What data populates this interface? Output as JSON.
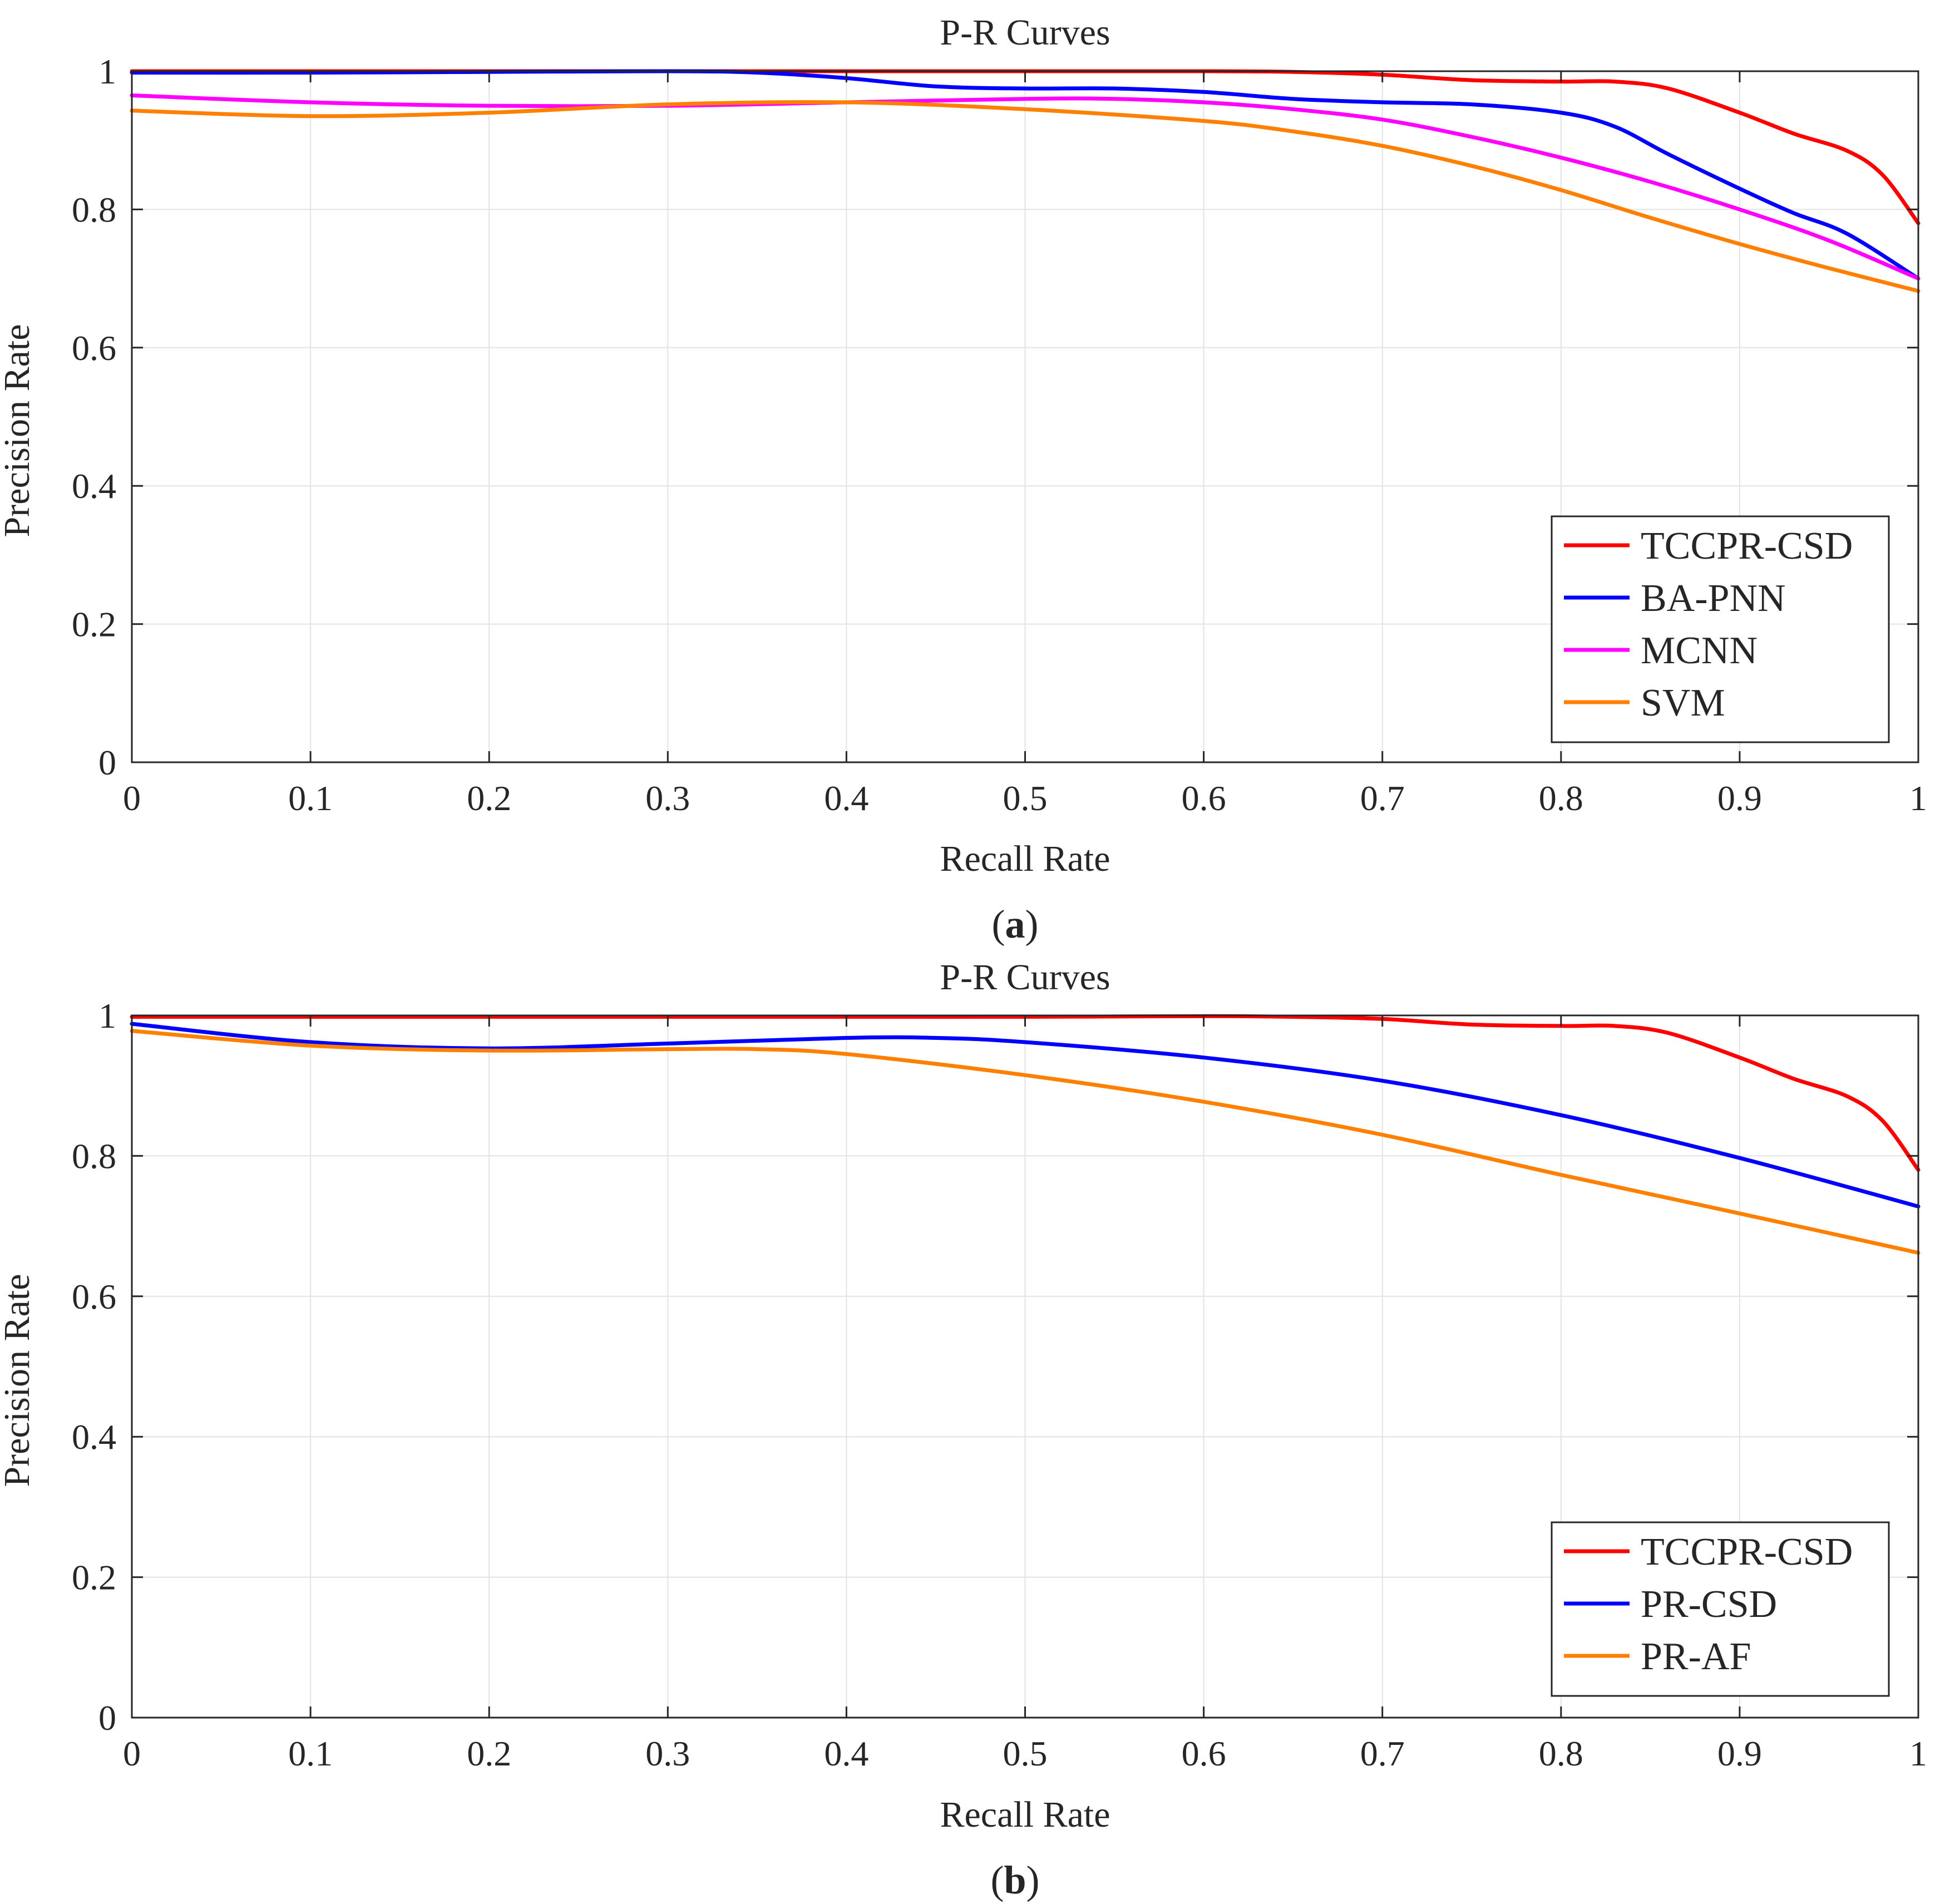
{
  "chart_data": [
    {
      "id": "a",
      "type": "line",
      "title": "P-R Curves",
      "xlabel": "Recall Rate",
      "ylabel": "Precision Rate",
      "caption": "a",
      "xlim": [
        0,
        1
      ],
      "ylim": [
        0,
        1
      ],
      "xticks": [
        "0",
        "0.1",
        "0.2",
        "0.3",
        "0.4",
        "0.5",
        "0.6",
        "0.7",
        "0.8",
        "0.9",
        "1"
      ],
      "yticks": [
        "0",
        "0.2",
        "0.4",
        "0.6",
        "0.8",
        "1"
      ],
      "grid": true,
      "legend_position": "bottom-right",
      "series": [
        {
          "name": "TCCPR-CSD",
          "color": "#ff0000",
          "x": [
            0,
            0.1,
            0.2,
            0.3,
            0.4,
            0.5,
            0.6,
            0.65,
            0.7,
            0.75,
            0.8,
            0.83,
            0.86,
            0.9,
            0.93,
            0.96,
            0.98,
            1.0
          ],
          "y": [
            1.0,
            1.0,
            1.0,
            1.0,
            1.0,
            1.0,
            1.0,
            0.999,
            0.995,
            0.987,
            0.985,
            0.985,
            0.975,
            0.94,
            0.91,
            0.885,
            0.85,
            0.78
          ]
        },
        {
          "name": "BA-PNN",
          "color": "#0000ff",
          "x": [
            0,
            0.1,
            0.2,
            0.3,
            0.35,
            0.4,
            0.45,
            0.5,
            0.55,
            0.6,
            0.65,
            0.7,
            0.75,
            0.8,
            0.83,
            0.86,
            0.9,
            0.93,
            0.96,
            1.0
          ],
          "y": [
            0.998,
            0.998,
            0.999,
            1.0,
            0.998,
            0.99,
            0.978,
            0.975,
            0.975,
            0.97,
            0.96,
            0.955,
            0.952,
            0.94,
            0.92,
            0.88,
            0.83,
            0.795,
            0.765,
            0.7
          ]
        },
        {
          "name": "MCNN",
          "color": "#ff00ff",
          "x": [
            0,
            0.1,
            0.2,
            0.3,
            0.4,
            0.5,
            0.55,
            0.6,
            0.65,
            0.7,
            0.75,
            0.8,
            0.85,
            0.9,
            0.95,
            1.0
          ],
          "y": [
            0.965,
            0.955,
            0.95,
            0.95,
            0.955,
            0.96,
            0.96,
            0.955,
            0.945,
            0.93,
            0.905,
            0.875,
            0.84,
            0.8,
            0.755,
            0.7
          ]
        },
        {
          "name": "SVM",
          "color": "#ff8000",
          "x": [
            0,
            0.1,
            0.2,
            0.3,
            0.4,
            0.5,
            0.6,
            0.65,
            0.7,
            0.75,
            0.8,
            0.85,
            0.9,
            0.95,
            1.0
          ],
          "y": [
            0.943,
            0.935,
            0.94,
            0.952,
            0.955,
            0.945,
            0.928,
            0.913,
            0.892,
            0.863,
            0.828,
            0.788,
            0.75,
            0.715,
            0.682
          ]
        }
      ]
    },
    {
      "id": "b",
      "type": "line",
      "title": "P-R Curves",
      "xlabel": "Recall Rate",
      "ylabel": "Precision Rate",
      "caption": "b",
      "xlim": [
        0,
        1
      ],
      "ylim": [
        0,
        1
      ],
      "xticks": [
        "0",
        "0.1",
        "0.2",
        "0.3",
        "0.4",
        "0.5",
        "0.6",
        "0.7",
        "0.8",
        "0.9",
        "1"
      ],
      "yticks": [
        "0",
        "0.2",
        "0.4",
        "0.6",
        "0.8",
        "1"
      ],
      "grid": true,
      "legend_position": "bottom-right",
      "series": [
        {
          "name": "TCCPR-CSD",
          "color": "#ff0000",
          "x": [
            0,
            0.1,
            0.2,
            0.3,
            0.4,
            0.5,
            0.6,
            0.65,
            0.7,
            0.75,
            0.8,
            0.83,
            0.86,
            0.9,
            0.93,
            0.96,
            0.98,
            1.0
          ],
          "y": [
            0.998,
            0.998,
            0.998,
            0.998,
            0.998,
            0.998,
            0.999,
            0.998,
            0.995,
            0.987,
            0.985,
            0.985,
            0.975,
            0.94,
            0.91,
            0.885,
            0.85,
            0.78
          ]
        },
        {
          "name": "PR-CSD",
          "color": "#0000ff",
          "x": [
            0,
            0.1,
            0.2,
            0.3,
            0.4,
            0.45,
            0.5,
            0.6,
            0.7,
            0.8,
            0.9,
            1.0
          ],
          "y": [
            0.988,
            0.962,
            0.953,
            0.96,
            0.968,
            0.968,
            0.962,
            0.94,
            0.907,
            0.858,
            0.797,
            0.728
          ]
        },
        {
          "name": "PR-AF",
          "color": "#ff8000",
          "x": [
            0,
            0.1,
            0.2,
            0.3,
            0.35,
            0.4,
            0.5,
            0.6,
            0.7,
            0.8,
            0.9,
            1.0
          ],
          "y": [
            0.978,
            0.957,
            0.95,
            0.952,
            0.952,
            0.945,
            0.915,
            0.877,
            0.83,
            0.773,
            0.718,
            0.662
          ]
        }
      ]
    }
  ]
}
